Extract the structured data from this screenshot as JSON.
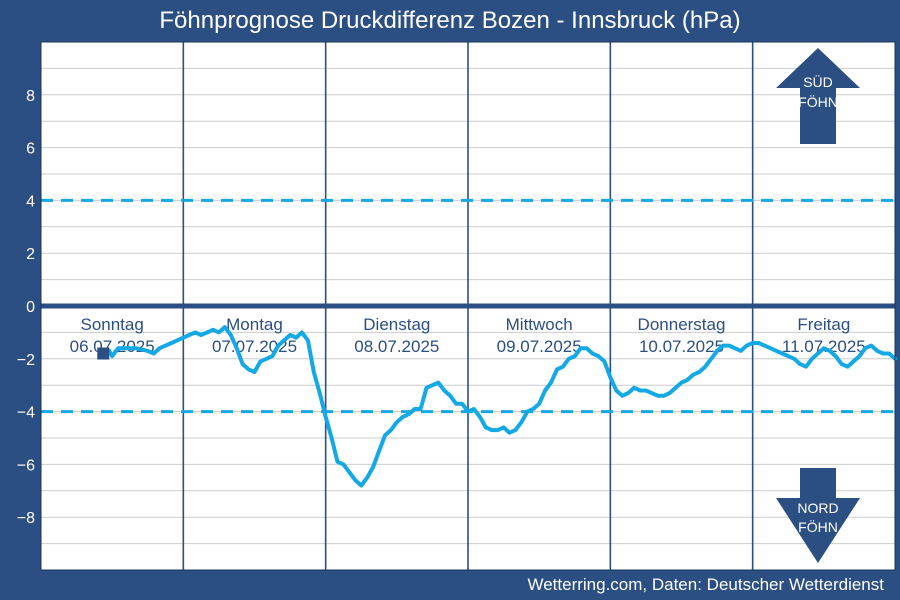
{
  "title": "Föhnprognose Druckdifferenz Bozen - Innsbruck (hPa)",
  "footer": "Wetterring.com, Daten: Deutscher Wetterdienst",
  "colors": {
    "background": "#2b4f82",
    "plot": "#ffffff",
    "series": "#13a8e6",
    "threshold": "#13a8e6",
    "zero_line": "#2b4f82",
    "grid": "#cccccc",
    "separator": "#2b4f82",
    "marker": "#2b4f82"
  },
  "arrows": {
    "south": {
      "line1": "SÜD",
      "line2": "FÖHN"
    },
    "north": {
      "line1": "NORD",
      "line2": "FÖHN"
    }
  },
  "chart_data": {
    "type": "line",
    "title": "Föhnprognose Druckdifferenz Bozen - Innsbruck (hPa)",
    "xlabel": "",
    "ylabel": "",
    "ylim": [
      -10,
      10
    ],
    "xlim": [
      0,
      144
    ],
    "yticks": [
      8,
      6,
      4,
      2,
      0,
      -2,
      -4,
      -6,
      -8
    ],
    "grid": true,
    "x_unit": "hours since 06.07.2025 00:00",
    "days": [
      {
        "name": "Sonntag",
        "date": "06.07.2025"
      },
      {
        "name": "Montag",
        "date": "07.07.2025"
      },
      {
        "name": "Dienstag",
        "date": "08.07.2025"
      },
      {
        "name": "Mittwoch",
        "date": "09.07.2025"
      },
      {
        "name": "Donnerstag",
        "date": "10.07.2025"
      },
      {
        "name": "Freitag",
        "date": "11.07.2025"
      }
    ],
    "reference_lines": [
      {
        "y": 4,
        "style": "dashed"
      },
      {
        "y": 0,
        "style": "solid"
      },
      {
        "y": -4,
        "style": "dashed"
      }
    ],
    "current_marker": {
      "x": 10.5,
      "y": -1.8
    },
    "series": [
      {
        "x": [
          11.5,
          12,
          13,
          14,
          16,
          18,
          19,
          20,
          21,
          22,
          23,
          24,
          25,
          26,
          27,
          28,
          29,
          30,
          31,
          32,
          33,
          34,
          35,
          36,
          37,
          38,
          39,
          40,
          41,
          42,
          43,
          44,
          45,
          46,
          47,
          48,
          49,
          50,
          51,
          52,
          53,
          54,
          55,
          56,
          57,
          58,
          59,
          60,
          61,
          62,
          63,
          64,
          65,
          66,
          67,
          68,
          69,
          70,
          71,
          72,
          73,
          74,
          75,
          76,
          77,
          78,
          79,
          80,
          81,
          82,
          83,
          84,
          85,
          86,
          87,
          88,
          89,
          90,
          91,
          92,
          93,
          94,
          95,
          96,
          97,
          98,
          99,
          100,
          101,
          102,
          103,
          104,
          105,
          106,
          107,
          108,
          109,
          110,
          111,
          112,
          113,
          114,
          115,
          116,
          117,
          118,
          119,
          120,
          121,
          122,
          123,
          124,
          125,
          126,
          127,
          128,
          129,
          130,
          131,
          132,
          133,
          134,
          135,
          136,
          137,
          138,
          139,
          140,
          141,
          142,
          143,
          144
        ],
        "y": [
          -1.7,
          -1.9,
          -1.6,
          -1.6,
          -1.6,
          -1.7,
          -1.8,
          -1.6,
          -1.5,
          -1.4,
          -1.3,
          -1.2,
          -1.1,
          -1.0,
          -1.1,
          -1.0,
          -0.9,
          -1.0,
          -0.8,
          -1.1,
          -1.6,
          -2.2,
          -2.4,
          -2.5,
          -2.1,
          -2.0,
          -1.9,
          -1.5,
          -1.3,
          -1.1,
          -1.2,
          -1.0,
          -1.3,
          -2.5,
          -3.3,
          -4.2,
          -5.0,
          -5.9,
          -6.0,
          -6.3,
          -6.6,
          -6.8,
          -6.5,
          -6.1,
          -5.5,
          -4.9,
          -4.7,
          -4.4,
          -4.2,
          -4.1,
          -3.9,
          -3.9,
          -3.1,
          -3.0,
          -2.9,
          -3.2,
          -3.4,
          -3.7,
          -3.7,
          -4.0,
          -3.9,
          -4.2,
          -4.6,
          -4.7,
          -4.7,
          -4.6,
          -4.8,
          -4.7,
          -4.4,
          -4.0,
          -3.9,
          -3.7,
          -3.2,
          -2.9,
          -2.4,
          -2.3,
          -2.0,
          -1.9,
          -1.6,
          -1.6,
          -1.8,
          -1.9,
          -2.1,
          -2.7,
          -3.2,
          -3.4,
          -3.3,
          -3.1,
          -3.2,
          -3.2,
          -3.3,
          -3.4,
          -3.4,
          -3.3,
          -3.1,
          -2.9,
          -2.8,
          -2.6,
          -2.5,
          -2.3,
          -2.0,
          -1.7,
          -1.5,
          -1.5,
          -1.6,
          -1.7,
          -1.5,
          -1.4,
          -1.4,
          -1.5,
          -1.6,
          -1.7,
          -1.8,
          -1.9,
          -2.0,
          -2.2,
          -2.3,
          -2.0,
          -1.8,
          -1.6,
          -1.7,
          -1.9,
          -2.2,
          -2.3,
          -2.1,
          -1.9,
          -1.6,
          -1.5,
          -1.7,
          -1.8,
          -1.8,
          -2.0
        ]
      }
    ]
  }
}
